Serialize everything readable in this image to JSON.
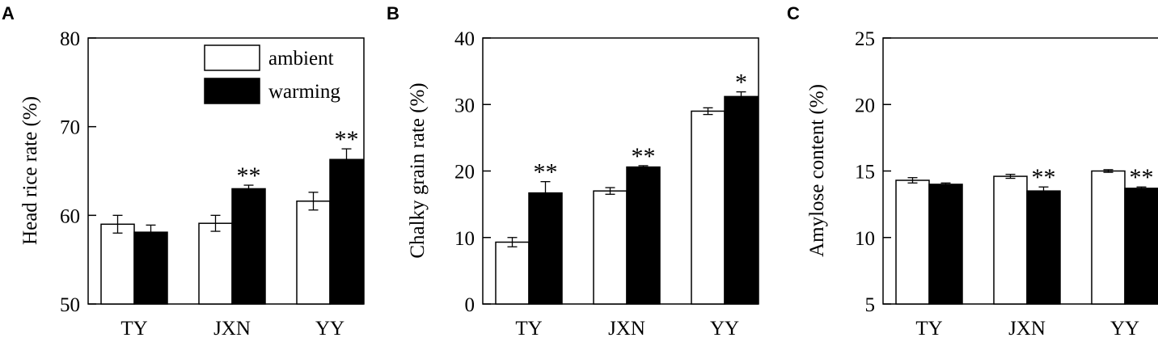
{
  "chart_data": [
    {
      "type": "bar",
      "panel": "A",
      "categories": [
        "TY",
        "JXN",
        "YY"
      ],
      "ylabel": "Head rice rate (%)",
      "ylim": [
        50,
        80
      ],
      "yticks": [
        50,
        60,
        70,
        80
      ],
      "grid": false,
      "legend": {
        "placement": "top-right",
        "entries": [
          "ambient",
          "warming"
        ]
      },
      "series": [
        {
          "name": "ambient",
          "color": "#ffffff",
          "values": [
            59.0,
            59.1,
            61.6
          ],
          "errors": [
            1.0,
            0.9,
            1.0
          ]
        },
        {
          "name": "warming",
          "color": "#000000",
          "values": [
            58.1,
            63.0,
            66.3
          ],
          "errors": [
            0.8,
            0.4,
            1.2
          ]
        }
      ],
      "annotations": [
        {
          "category": "JXN",
          "text": "**"
        },
        {
          "category": "YY",
          "text": "**"
        }
      ]
    },
    {
      "type": "bar",
      "panel": "B",
      "categories": [
        "TY",
        "JXN",
        "YY"
      ],
      "ylabel": "Chalky grain rate (%)",
      "ylim": [
        0,
        40
      ],
      "yticks": [
        0,
        10,
        20,
        30,
        40
      ],
      "grid": false,
      "series": [
        {
          "name": "ambient",
          "color": "#ffffff",
          "values": [
            9.3,
            17.0,
            29.0
          ],
          "errors": [
            0.7,
            0.5,
            0.5
          ]
        },
        {
          "name": "warming",
          "color": "#000000",
          "values": [
            16.7,
            20.6,
            31.2
          ],
          "errors": [
            1.7,
            0.2,
            0.7
          ]
        }
      ],
      "annotations": [
        {
          "category": "TY",
          "text": "**"
        },
        {
          "category": "JXN",
          "text": "**"
        },
        {
          "category": "YY",
          "text": "*"
        }
      ]
    },
    {
      "type": "bar",
      "panel": "C",
      "categories": [
        "TY",
        "JXN",
        "YY"
      ],
      "ylabel": "Amylose content (%)",
      "ylim": [
        5,
        25
      ],
      "yticks": [
        5,
        10,
        15,
        20,
        25
      ],
      "grid": false,
      "series": [
        {
          "name": "ambient",
          "color": "#ffffff",
          "values": [
            14.3,
            14.6,
            15.0
          ],
          "errors": [
            0.2,
            0.15,
            0.1
          ]
        },
        {
          "name": "warming",
          "color": "#000000",
          "values": [
            14.0,
            13.5,
            13.7
          ],
          "errors": [
            0.1,
            0.3,
            0.1
          ]
        }
      ],
      "annotations": [
        {
          "category": "JXN",
          "text": "**"
        },
        {
          "category": "YY",
          "text": "**"
        }
      ]
    }
  ]
}
